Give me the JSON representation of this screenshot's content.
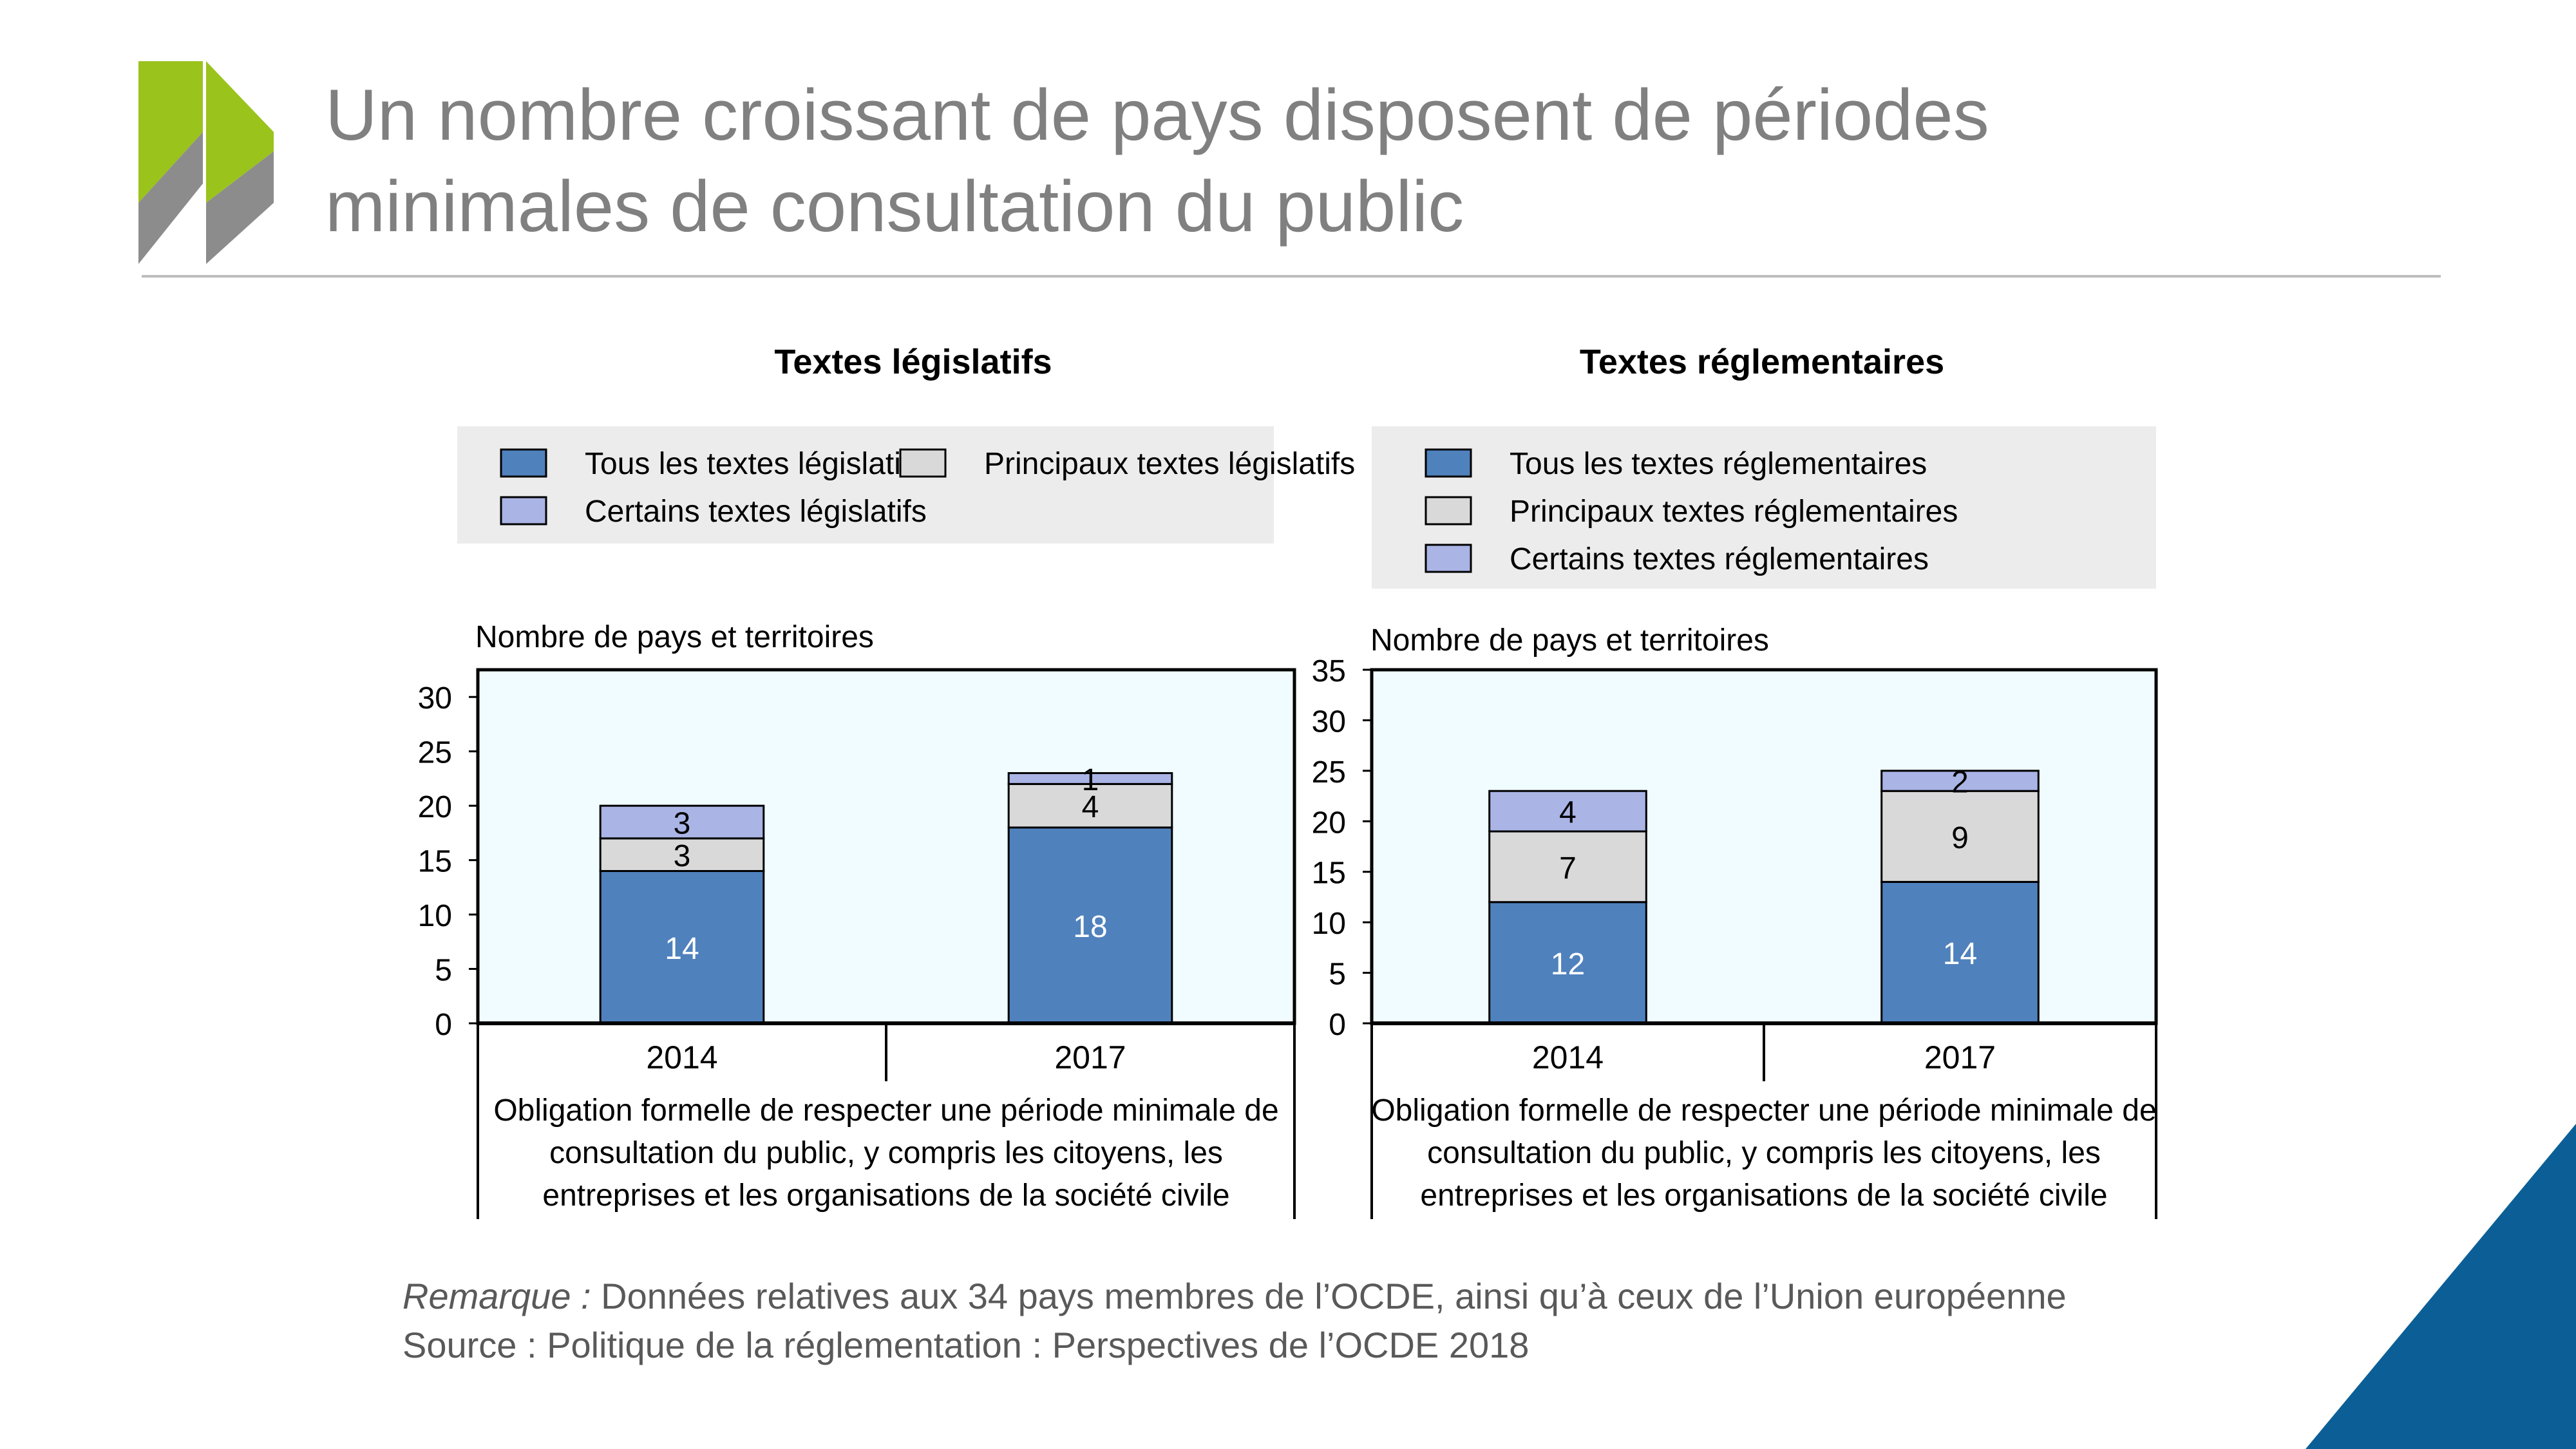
{
  "slide": {
    "title": "Un nombre croissant de pays disposent de périodes\nminimales de consultation du public",
    "brand_colors": {
      "logo_green": "#9ac31c",
      "logo_grey": "#8c8c8c",
      "corner_blue": "#0b5f96"
    }
  },
  "chart_data": [
    {
      "type": "bar",
      "stacked": true,
      "title": "Textes législatifs",
      "ylabel": "Nombre de pays et territoires",
      "xlabel": "Obligation formelle de respecter une période minimale de consultation du public, y compris les citoyens, les entreprises et les organisations de la société civile",
      "categories": [
        "2014",
        "2017"
      ],
      "ylim": [
        0,
        32.5
      ],
      "yticks": [
        0,
        5,
        10,
        15,
        20,
        25,
        30
      ],
      "legend": {
        "position": "top",
        "columns": 2
      },
      "series": [
        {
          "name": "Tous les textes législatifs",
          "values": [
            14,
            18
          ],
          "color": "#4f81bd"
        },
        {
          "name": "Principaux textes législatifs",
          "values": [
            3,
            4
          ],
          "color": "#d9d9d9"
        },
        {
          "name": "Certains textes législatifs",
          "values": [
            3,
            1
          ],
          "color": "#aab4e5"
        }
      ]
    },
    {
      "type": "bar",
      "stacked": true,
      "title": "Textes réglementaires",
      "ylabel": "Nombre de pays et territoires",
      "xlabel": "Obligation formelle de respecter une période minimale de consultation du public, y compris les citoyens, les entreprises et les organisations de la société civile",
      "categories": [
        "2014",
        "2017"
      ],
      "ylim": [
        0,
        35
      ],
      "yticks": [
        0,
        5,
        10,
        15,
        20,
        25,
        30,
        35
      ],
      "legend": {
        "position": "top",
        "columns": 1
      },
      "series": [
        {
          "name": "Tous les textes réglementaires",
          "values": [
            12,
            14
          ],
          "color": "#4f81bd"
        },
        {
          "name": "Principaux textes réglementaires",
          "values": [
            7,
            9
          ],
          "color": "#d9d9d9"
        },
        {
          "name": "Certains textes réglementaires",
          "values": [
            4,
            2
          ],
          "color": "#aab4e5"
        }
      ]
    }
  ],
  "notes": {
    "remark_label": "Remarque :",
    "remark_text": " Données relatives aux 34 pays membres de l’OCDE, ainsi qu’à ceux de l’Union européenne",
    "source": "Source : Politique de la réglementation : Perspectives de l’OCDE 2018"
  }
}
